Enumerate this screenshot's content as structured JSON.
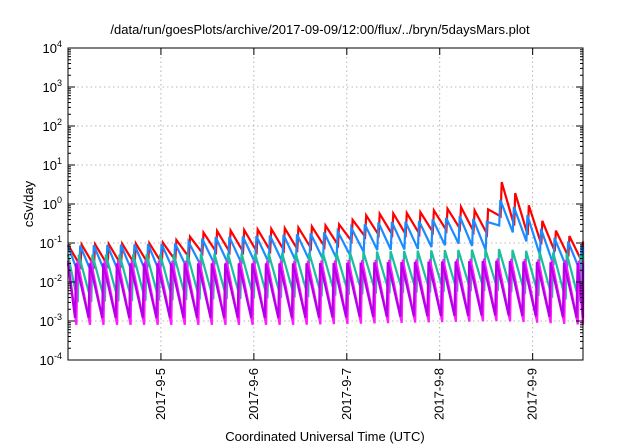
{
  "chart_data": {
    "type": "line",
    "title": "/data/run/goesPlots/archive/2017-09-09/12:00/flux/../bryn/5daysMars.plot",
    "xlabel": "Coordinated Universal Time (UTC)",
    "ylabel": "cSv/day",
    "x_range": [
      "2017-09-04T00:00",
      "2017-09-09T13:00"
    ],
    "xticks": [
      "2017-9-5",
      "2017-9-6",
      "2017-9-7",
      "2017-9-8",
      "2017-9-9"
    ],
    "y_scale": "log",
    "ylim": [
      0.0001,
      10000
    ],
    "yticks": [
      {
        "value": 0.0001,
        "base": "10",
        "exp": "-4"
      },
      {
        "value": 0.001,
        "base": "10",
        "exp": "-3"
      },
      {
        "value": 0.01,
        "base": "10",
        "exp": "-2"
      },
      {
        "value": 0.1,
        "base": "10",
        "exp": "-1"
      },
      {
        "value": 1,
        "base": "10",
        "exp": "0"
      },
      {
        "value": 10,
        "base": "10",
        "exp": "1"
      },
      {
        "value": 100,
        "base": "10",
        "exp": "2"
      },
      {
        "value": 1000,
        "base": "10",
        "exp": "3"
      },
      {
        "value": 10000,
        "base": "10",
        "exp": "4"
      }
    ],
    "grid": true,
    "legend": "none",
    "period_hours": 3.5,
    "series": [
      {
        "color": "#ff0000",
        "peaks": [
          [
            0,
            0.09
          ],
          [
            24,
            0.1
          ],
          [
            30,
            0.13
          ],
          [
            36,
            0.2
          ],
          [
            48,
            0.22
          ],
          [
            60,
            0.25
          ],
          [
            70,
            0.3
          ],
          [
            78,
            0.55
          ],
          [
            90,
            0.6
          ],
          [
            102,
            0.85
          ],
          [
            108,
            0.55
          ],
          [
            111.5,
            4.0
          ],
          [
            118,
            1.2
          ],
          [
            124,
            0.25
          ],
          [
            134,
            0.1
          ]
        ],
        "troughs": [
          [
            0,
            0.025
          ],
          [
            24,
            0.03
          ],
          [
            30,
            0.04
          ],
          [
            36,
            0.06
          ],
          [
            48,
            0.06
          ],
          [
            60,
            0.07
          ],
          [
            70,
            0.09
          ],
          [
            78,
            0.16
          ],
          [
            90,
            0.17
          ],
          [
            102,
            0.24
          ],
          [
            108,
            0.16
          ],
          [
            111.5,
            0.5
          ],
          [
            118,
            0.18
          ],
          [
            124,
            0.07
          ],
          [
            134,
            0.03
          ]
        ]
      },
      {
        "color": "#1a8cff",
        "peaks": [
          [
            0,
            0.085
          ],
          [
            24,
            0.095
          ],
          [
            30,
            0.1
          ],
          [
            36,
            0.14
          ],
          [
            48,
            0.15
          ],
          [
            60,
            0.17
          ],
          [
            70,
            0.2
          ],
          [
            78,
            0.33
          ],
          [
            90,
            0.36
          ],
          [
            102,
            0.5
          ],
          [
            108,
            0.33
          ],
          [
            111.5,
            1.3
          ],
          [
            118,
            0.6
          ],
          [
            124,
            0.15
          ],
          [
            134,
            0.08
          ]
        ],
        "troughs": [
          [
            0,
            0.014
          ],
          [
            24,
            0.016
          ],
          [
            30,
            0.02
          ],
          [
            36,
            0.028
          ],
          [
            48,
            0.03
          ],
          [
            60,
            0.034
          ],
          [
            70,
            0.04
          ],
          [
            78,
            0.065
          ],
          [
            90,
            0.07
          ],
          [
            102,
            0.1
          ],
          [
            108,
            0.065
          ],
          [
            111.5,
            0.3
          ],
          [
            118,
            0.12
          ],
          [
            124,
            0.03
          ],
          [
            134,
            0.016
          ]
        ]
      },
      {
        "color": "#1bbf9e",
        "peaks": [
          [
            0,
            0.05
          ],
          [
            60,
            0.055
          ],
          [
            78,
            0.06
          ],
          [
            111.5,
            0.07
          ],
          [
            134,
            0.05
          ]
        ],
        "troughs": [
          [
            0,
            0.003
          ],
          [
            60,
            0.004
          ],
          [
            78,
            0.005
          ],
          [
            111.5,
            0.006
          ],
          [
            134,
            0.003
          ]
        ]
      },
      {
        "color": "#ff1aff",
        "peaks": [
          [
            0,
            0.035
          ],
          [
            60,
            0.035
          ],
          [
            111.5,
            0.04
          ],
          [
            134,
            0.035
          ]
        ],
        "troughs": [
          [
            0,
            0.0008
          ],
          [
            60,
            0.0008
          ],
          [
            111.5,
            0.001
          ],
          [
            134,
            0.0008
          ]
        ]
      },
      {
        "color": "#b300e6",
        "peaks": [
          [
            0,
            0.03
          ],
          [
            60,
            0.03
          ],
          [
            111.5,
            0.035
          ],
          [
            134,
            0.03
          ]
        ],
        "troughs": [
          [
            0,
            0.0012
          ],
          [
            60,
            0.0012
          ],
          [
            111.5,
            0.0014
          ],
          [
            134,
            0.0012
          ]
        ]
      }
    ]
  }
}
